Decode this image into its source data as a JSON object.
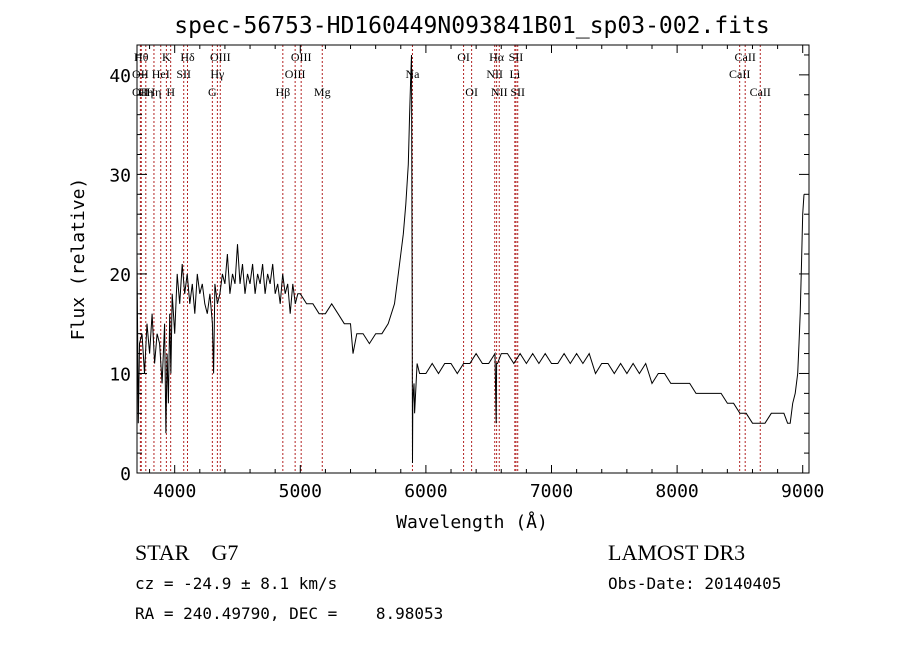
{
  "chart_data": {
    "type": "line",
    "title": "spec-56753-HD160449N093841B01_sp03-002.fits",
    "xlabel": "Wavelength (Å)",
    "ylabel": "Flux (relative)",
    "xlim": [
      3700,
      9050
    ],
    "ylim": [
      0,
      43
    ],
    "xticks": [
      4000,
      5000,
      6000,
      7000,
      8000,
      9000
    ],
    "yticks": [
      0,
      10,
      20,
      30,
      40
    ],
    "series": [
      {
        "name": "flux",
        "x": [
          3700,
          3710,
          3720,
          3740,
          3760,
          3780,
          3800,
          3820,
          3840,
          3860,
          3880,
          3900,
          3920,
          3930,
          3940,
          3950,
          3960,
          3970,
          3980,
          4000,
          4020,
          4040,
          4060,
          4080,
          4100,
          4120,
          4140,
          4160,
          4180,
          4200,
          4220,
          4240,
          4260,
          4280,
          4300,
          4310,
          4320,
          4340,
          4360,
          4380,
          4400,
          4420,
          4440,
          4460,
          4480,
          4500,
          4520,
          4540,
          4560,
          4580,
          4600,
          4620,
          4640,
          4660,
          4680,
          4700,
          4720,
          4740,
          4760,
          4780,
          4800,
          4820,
          4840,
          4860,
          4880,
          4900,
          4920,
          4940,
          4960,
          4980,
          5000,
          5050,
          5100,
          5150,
          5200,
          5250,
          5300,
          5350,
          5400,
          5420,
          5450,
          5500,
          5550,
          5600,
          5650,
          5700,
          5750,
          5780,
          5800,
          5820,
          5840,
          5860,
          5870,
          5880,
          5885,
          5890,
          5893,
          5896,
          5900,
          5905,
          5910,
          5930,
          5950,
          6000,
          6050,
          6100,
          6150,
          6200,
          6250,
          6300,
          6350,
          6400,
          6450,
          6500,
          6550,
          6560,
          6563,
          6570,
          6600,
          6650,
          6700,
          6750,
          6800,
          6850,
          6900,
          6950,
          7000,
          7050,
          7100,
          7150,
          7200,
          7250,
          7300,
          7350,
          7400,
          7450,
          7500,
          7550,
          7600,
          7650,
          7700,
          7750,
          7800,
          7850,
          7900,
          7950,
          8000,
          8050,
          8100,
          8150,
          8200,
          8250,
          8300,
          8350,
          8400,
          8450,
          8500,
          8550,
          8600,
          8650,
          8700,
          8750,
          8800,
          8850,
          8880,
          8900,
          8920,
          8940,
          8960,
          8970,
          8980,
          8990,
          9000,
          9010
        ],
        "y": [
          22,
          5,
          13,
          14,
          10,
          15,
          12,
          16,
          11,
          14,
          13,
          9,
          15,
          4,
          12,
          7,
          16,
          10,
          18,
          14,
          20,
          17,
          21,
          18,
          20,
          17,
          19,
          16,
          20,
          18,
          19,
          17,
          16,
          18,
          15,
          10,
          19,
          17,
          18,
          20,
          19,
          22,
          18,
          20,
          19,
          23,
          19,
          21,
          18,
          20,
          19,
          21,
          18,
          20,
          19,
          21,
          18,
          20,
          19,
          21,
          18,
          19,
          17,
          20,
          18,
          19,
          16,
          19,
          17,
          18,
          18,
          17,
          17,
          16,
          16,
          17,
          16,
          15,
          15,
          12,
          14,
          14,
          13,
          14,
          14,
          15,
          17,
          20,
          22,
          24,
          27,
          31,
          36,
          40,
          42,
          20,
          1,
          7,
          8,
          9,
          6,
          11,
          10,
          10,
          11,
          10,
          11,
          11,
          10,
          11,
          11,
          12,
          11,
          11,
          12,
          5,
          11,
          11,
          12,
          12,
          11,
          12,
          11,
          12,
          11,
          12,
          11,
          11,
          12,
          11,
          12,
          11,
          12,
          10,
          11,
          11,
          10,
          11,
          10,
          11,
          10,
          11,
          9,
          10,
          10,
          9,
          9,
          9,
          9,
          8,
          8,
          8,
          8,
          8,
          7,
          7,
          6,
          6,
          5,
          5,
          5,
          6,
          6,
          6,
          5,
          5,
          7,
          8,
          10,
          13,
          16,
          21,
          26,
          28
        ]
      }
    ],
    "annotations": {
      "left_info": [
        "STAR    G7",
        "cz = -24.9 ± 8.1 km/s",
        "RA = 240.49790, DEC =    8.98053"
      ],
      "right_info": [
        "LAMOST DR3",
        "Obs-Date: 20140405"
      ]
    },
    "line_marks": [
      {
        "x": 3734,
        "label": "Hθ",
        "row": 1
      },
      {
        "x": 3727,
        "label": "OII",
        "row": 2
      },
      {
        "x": 3727,
        "label": "OII",
        "row": 3
      },
      {
        "x": 3770,
        "label": "Hη",
        "row": 3
      },
      {
        "x": 3835,
        "label": "Hη",
        "row": 3
      },
      {
        "x": 3889,
        "label": "HeI",
        "row": 2
      },
      {
        "x": 3934,
        "label": "K",
        "row": 1
      },
      {
        "x": 3968,
        "label": "H",
        "row": 3
      },
      {
        "x": 4072,
        "label": "SII",
        "row": 2
      },
      {
        "x": 4102,
        "label": "Hδ",
        "row": 1
      },
      {
        "x": 4300,
        "label": "G",
        "row": 3
      },
      {
        "x": 4340,
        "label": "Hγ",
        "row": 2
      },
      {
        "x": 4363,
        "label": "OIII",
        "row": 1
      },
      {
        "x": 4861,
        "label": "Hβ",
        "row": 3
      },
      {
        "x": 4959,
        "label": "OIII",
        "row": 2
      },
      {
        "x": 5007,
        "label": "OIII",
        "row": 1
      },
      {
        "x": 5175,
        "label": "Mg",
        "row": 3
      },
      {
        "x": 5893,
        "label": "Na",
        "row": 2
      },
      {
        "x": 6300,
        "label": "OI",
        "row": 1
      },
      {
        "x": 6364,
        "label": "OI",
        "row": 3
      },
      {
        "x": 6548,
        "label": "NII",
        "row": 2
      },
      {
        "x": 6563,
        "label": "Hα",
        "row": 1
      },
      {
        "x": 6584,
        "label": "NII",
        "row": 3
      },
      {
        "x": 6708,
        "label": "Li",
        "row": 2
      },
      {
        "x": 6717,
        "label": "SII",
        "row": 1
      },
      {
        "x": 6731,
        "label": "SII",
        "row": 3
      },
      {
        "x": 8498,
        "label": "CaII",
        "row": 2
      },
      {
        "x": 8542,
        "label": "CaII",
        "row": 1
      },
      {
        "x": 8662,
        "label": "CaII",
        "row": 3
      }
    ]
  }
}
